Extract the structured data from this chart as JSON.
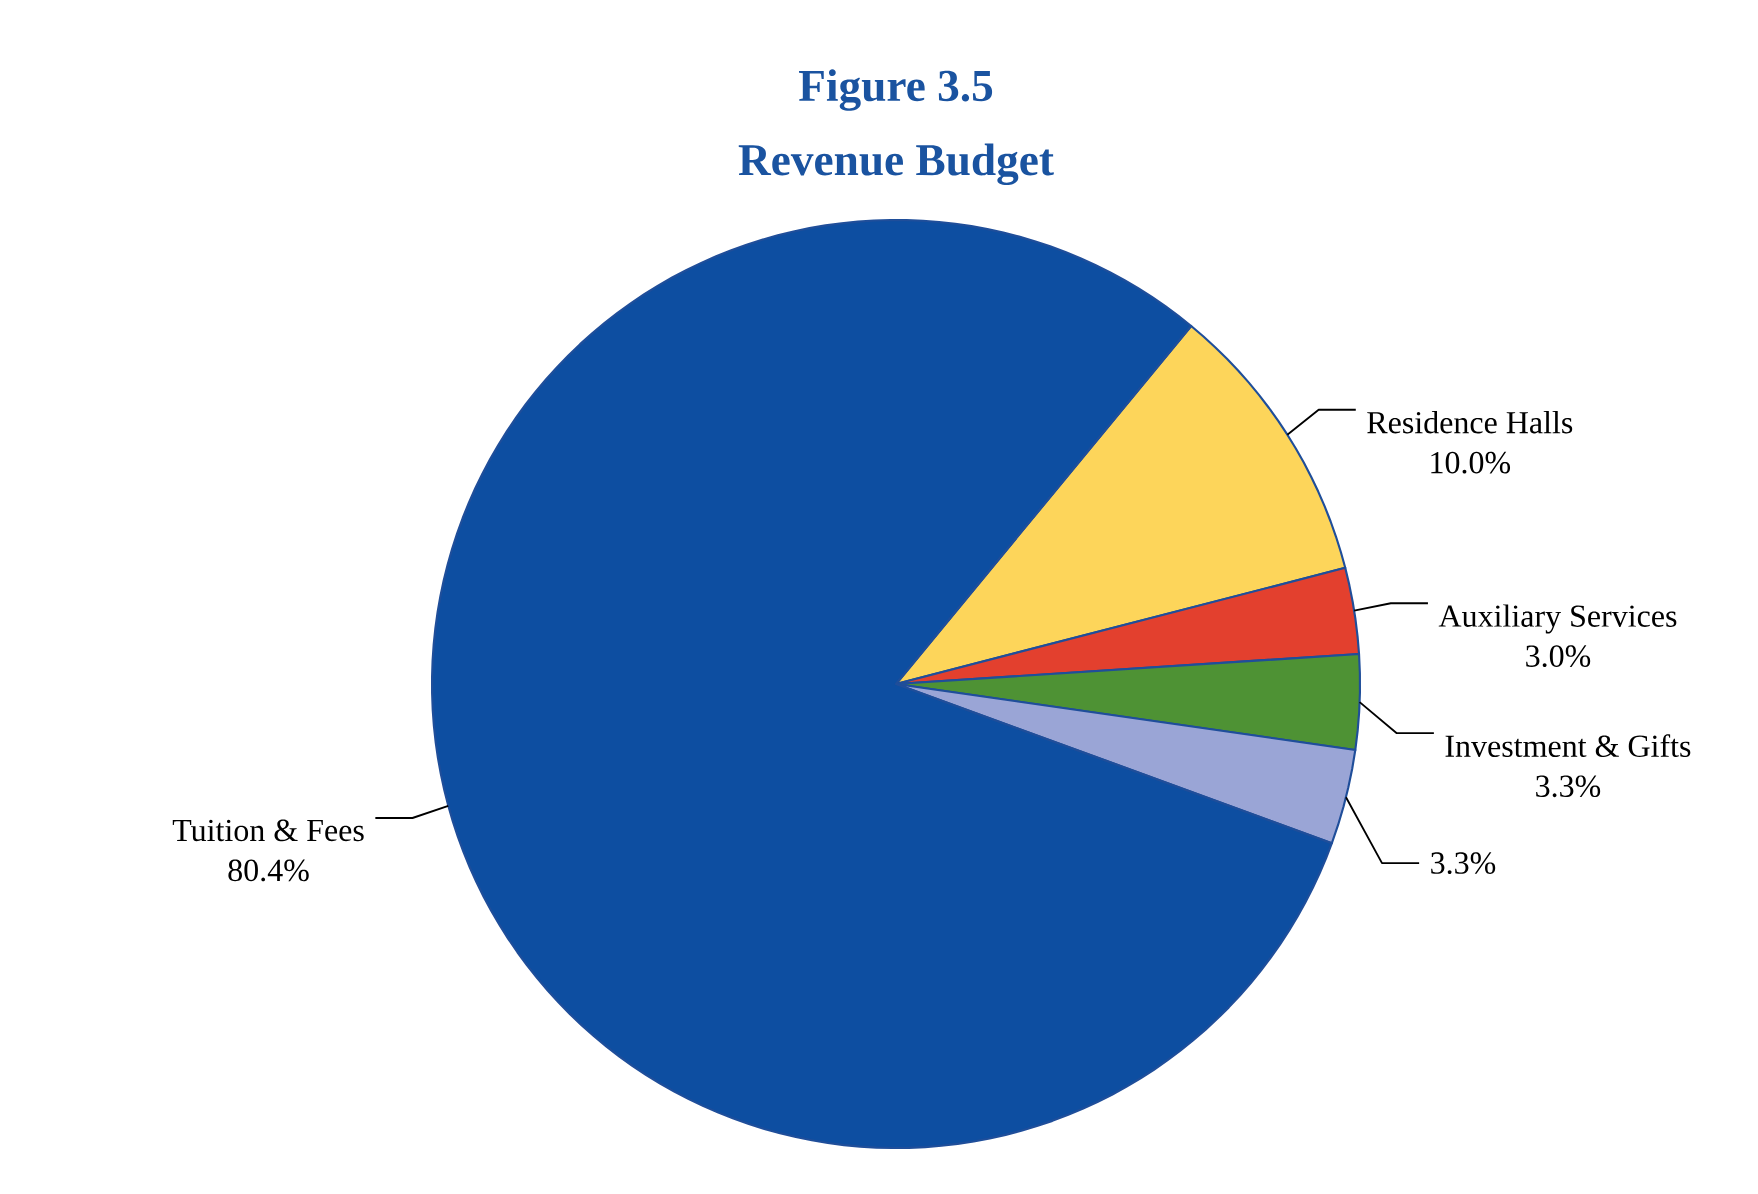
{
  "chart_data": {
    "type": "pie",
    "title": "Figure 3.5",
    "subtitle": "Revenue Budget",
    "categories": [
      "Residence Halls",
      "Auxiliary Services",
      "Investment & Gifts",
      null,
      "Tuition & Fees"
    ],
    "values": [
      10.0,
      3.0,
      3.3,
      3.3,
      80.4
    ],
    "value_labels": [
      "10.0%",
      "3.0%",
      "3.3%",
      "3.3%",
      "80.4%"
    ],
    "colors": [
      "#fdd55a",
      "#e3402e",
      "#4e9234",
      "#9aa5d6",
      "#0d4ea1"
    ]
  }
}
